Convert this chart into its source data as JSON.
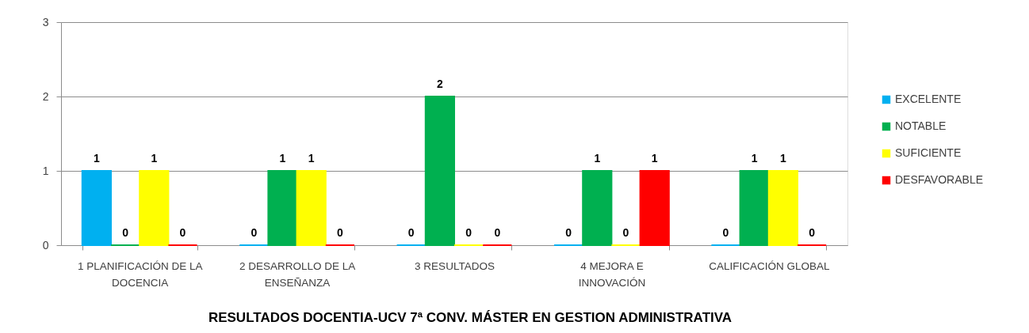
{
  "chart_data": {
    "type": "bar",
    "title": "RESULTADOS DOCENTIA-UCV 7ª CONV. MÁSTER EN GESTION ADMINISTRATIVA",
    "categories": [
      "1 PLANIFICACIÓN DE LA\nDOCENCIA",
      "2 DESARROLLO DE LA\nENSEÑANZA",
      "3 RESULTADOS",
      "4 MEJORA E\nINNOVACIÓN",
      "CALIFICACIÓN GLOBAL"
    ],
    "series": [
      {
        "name": "EXCELENTE",
        "color": "#00b0f0",
        "values": [
          1,
          0,
          0,
          0,
          0
        ]
      },
      {
        "name": "NOTABLE",
        "color": "#00b050",
        "values": [
          0,
          1,
          2,
          1,
          1
        ]
      },
      {
        "name": "SUFICIENTE",
        "color": "#ffff00",
        "values": [
          1,
          1,
          0,
          0,
          1
        ]
      },
      {
        "name": "DESFAVORABLE",
        "color": "#ff0000",
        "values": [
          0,
          0,
          0,
          1,
          0
        ]
      }
    ],
    "ylim": [
      0,
      3
    ],
    "yticks": [
      0,
      1,
      2,
      3
    ],
    "grid": "y",
    "legend": "right",
    "data_labels": true
  }
}
